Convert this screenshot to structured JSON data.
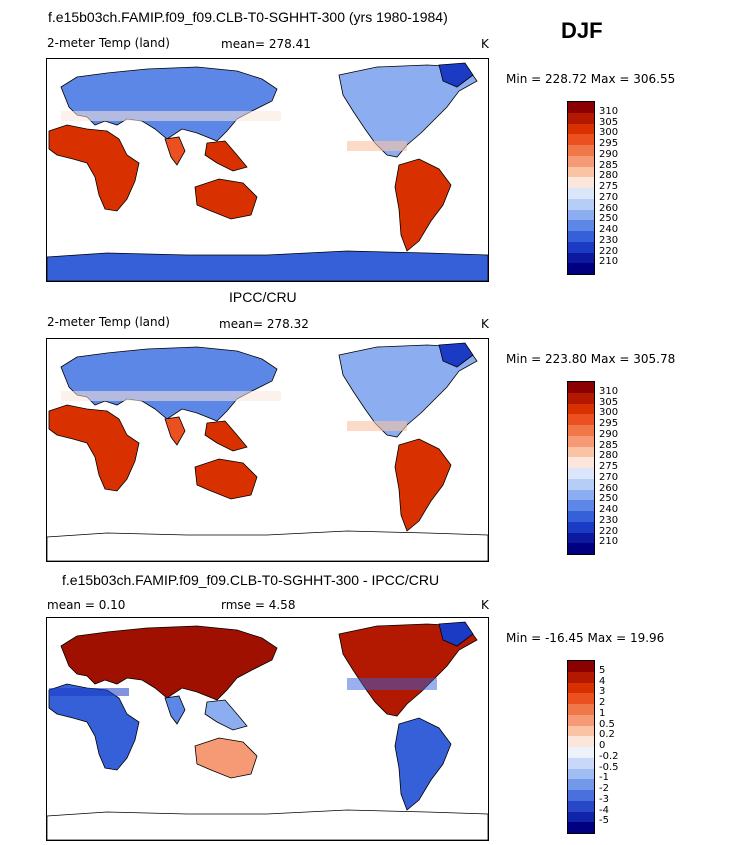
{
  "season": "DJF",
  "panels": [
    {
      "title": "f.e15b03ch.FAMIP.f09_f09.CLB-T0-SGHHT-300 (yrs 1980-1984)",
      "left": "2-meter Temp (land)",
      "center": "mean= 278.41",
      "units": "K",
      "minmax": "Min = 228.72 Max = 306.55",
      "levels": [
        "310",
        "305",
        "300",
        "295",
        "290",
        "285",
        "280",
        "275",
        "270",
        "260",
        "250",
        "240",
        "230",
        "220",
        "210"
      ],
      "colors": [
        "#8b0000",
        "#b31800",
        "#d93000",
        "#ea5020",
        "#f07848",
        "#f59a74",
        "#f9c3a4",
        "#fce6dc",
        "#dbe6fa",
        "#b6cdf6",
        "#8caef0",
        "#5c87e6",
        "#3560d8",
        "#1c3bc4",
        "#0d1aa0",
        "#000080"
      ],
      "kind": "temp"
    },
    {
      "title": "IPCC/CRU",
      "left": "2-meter Temp (land)",
      "center": "mean= 278.32",
      "units": "K",
      "minmax": "Min = 223.80 Max = 305.78",
      "levels": [
        "310",
        "305",
        "300",
        "295",
        "290",
        "285",
        "280",
        "275",
        "270",
        "260",
        "250",
        "240",
        "230",
        "220",
        "210"
      ],
      "colors": [
        "#8b0000",
        "#b31800",
        "#d93000",
        "#ea5020",
        "#f07848",
        "#f59a74",
        "#f9c3a4",
        "#fce6dc",
        "#dbe6fa",
        "#b6cdf6",
        "#8caef0",
        "#5c87e6",
        "#3560d8",
        "#1c3bc4",
        "#0d1aa0",
        "#000080"
      ],
      "kind": "obs"
    },
    {
      "title": "f.e15b03ch.FAMIP.f09_f09.CLB-T0-SGHHT-300 - IPCC/CRU",
      "left": "mean =    0.10",
      "center": "rmse =    4.58",
      "units": "K",
      "minmax": "Min = -16.45 Max =  19.96",
      "levels": [
        "5",
        "4",
        "3",
        "2",
        "1",
        "0.5",
        "0.2",
        "0",
        "-0.2",
        "-0.5",
        "-1",
        "-2",
        "-3",
        "-4",
        "-5"
      ],
      "colors": [
        "#8b0000",
        "#b31800",
        "#d93000",
        "#ea5020",
        "#f07848",
        "#f59a74",
        "#f9c3a4",
        "#fce6dc",
        "#eef2fb",
        "#c8d8f8",
        "#a0bdf3",
        "#7298ea",
        "#4a70de",
        "#2848c8",
        "#1024a8",
        "#000080"
      ],
      "kind": "diff"
    }
  ]
}
